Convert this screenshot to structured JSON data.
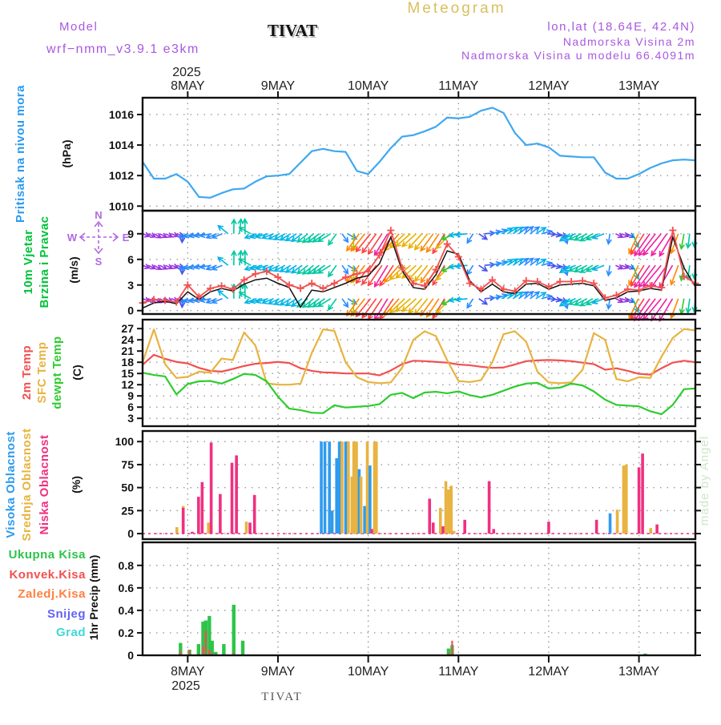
{
  "header": {
    "page_title": "Meteogram",
    "model_label": "Model",
    "model_name": "wrf−nmm_v3.9.1 e3km",
    "station": "TIVAT",
    "lonlat": "lon,lat (18.64E, 42.4N)",
    "elevation": "Nadmorska Visina 2m",
    "model_elevation": "Nadmorska Visina u modelu 66.4091m"
  },
  "x_axis": {
    "year": "2025",
    "days": [
      "8MAY",
      "9MAY",
      "10MAY",
      "11MAY",
      "12MAY",
      "13MAY"
    ],
    "tick_days": [
      0.5,
      1.5,
      2.5,
      3.5,
      4.5,
      5.5
    ],
    "span_days": 6.125
  },
  "footer": {
    "station": "TIVAT",
    "year": "2025"
  },
  "watermark": "made by Angel",
  "chart_data": [
    {
      "type": "line",
      "title": "Pritisak na nivou mora",
      "title_color": "#2b9af0",
      "ylabel": "(hPa)",
      "yticks": [
        1010,
        1012,
        1014,
        1016
      ],
      "ylim": [
        1009.7,
        1017.1
      ],
      "series": [
        {
          "name": "sea-level-pressure",
          "color": "#3fa8f0",
          "values": [
            1012.9,
            1011.8,
            1011.8,
            1012.1,
            1011.6,
            1010.6,
            1010.55,
            1010.85,
            1011.1,
            1011.15,
            1011.6,
            1011.95,
            1012.0,
            1012.1,
            1012.85,
            1013.6,
            1013.75,
            1013.6,
            1013.55,
            1012.3,
            1012.1,
            1012.9,
            1013.8,
            1014.55,
            1014.65,
            1014.9,
            1015.2,
            1015.8,
            1015.75,
            1015.85,
            1016.25,
            1016.45,
            1016.1,
            1014.8,
            1014.0,
            1014.1,
            1013.85,
            1013.3,
            1013.25,
            1013.2,
            1013.2,
            1012.2,
            1011.8,
            1011.8,
            1012.1,
            1012.5,
            1012.8,
            1013.0,
            1013.05,
            1013.0
          ]
        }
      ]
    },
    {
      "type": "wind",
      "labels": [
        "10m Vjetar",
        "Brzina i Pravac"
      ],
      "label_color": "#00c33a",
      "ylabel": "(m/s)",
      "yticks": [
        0,
        3,
        6,
        9
      ],
      "ylim": [
        -0.4,
        11.7
      ],
      "arrow_rows": [
        9.0,
        5.3,
        1.4
      ],
      "compass": {
        "n": "N",
        "e": "E",
        "s": "S",
        "w": "W"
      },
      "speed_color": "#f25050",
      "speed2_color": "#111111",
      "speed": [
        0.9,
        1.3,
        1.2,
        1.0,
        3.0,
        1.6,
        2.6,
        2.9,
        2.5,
        3.6,
        4.3,
        4.6,
        3.9,
        3.0,
        2.6,
        3.2,
        2.6,
        3.2,
        3.9,
        4.3,
        4.6,
        6.5,
        9.4,
        5.0,
        3.2,
        2.9,
        4.8,
        7.8,
        6.3,
        3.2,
        2.5,
        3.6,
        2.5,
        2.3,
        3.5,
        3.4,
        2.8,
        3.4,
        3.4,
        3.5,
        3.2,
        1.5,
        1.8,
        2.5,
        2.4,
        2.9,
        2.7,
        9.4,
        4.0,
        3.2
      ],
      "speed2": [
        0.3,
        0.9,
        1.1,
        0.8,
        2.2,
        1.3,
        2.2,
        2.6,
        2.3,
        3.1,
        3.6,
        3.8,
        3.2,
        2.7,
        0.4,
        2.4,
        2.2,
        2.7,
        3.2,
        3.8,
        4.1,
        5.5,
        8.6,
        4.7,
        2.7,
        2.5,
        4.2,
        7.0,
        6.6,
        3.5,
        2.2,
        3.1,
        2.2,
        2.0,
        3.1,
        3.2,
        2.5,
        3.0,
        3.1,
        3.2,
        2.9,
        1.2,
        1.5,
        2.2,
        2.3,
        2.6,
        2.4,
        8.6,
        5.0,
        2.8
      ],
      "dir_deg": [
        110,
        120,
        115,
        105,
        250,
        255,
        260,
        240,
        0,
        10,
        250,
        255,
        245,
        240,
        235,
        230,
        235,
        240,
        100,
        215,
        220,
        215,
        210,
        225,
        230,
        220,
        215,
        210,
        260,
        265,
        90,
        75,
        60,
        55,
        50,
        60,
        100,
        110,
        250,
        245,
        240,
        250,
        105,
        115,
        210,
        215,
        220,
        210,
        190,
        185
      ],
      "arrow_speed": [
        1.2,
        1.5,
        1.3,
        1.0,
        2.5,
        2.8,
        3.0,
        2.8,
        4.5,
        4.8,
        3.5,
        3.6,
        3.4,
        3.5,
        3.8,
        4.2,
        4.5,
        4.8,
        1.5,
        7.5,
        8.5,
        9.2,
        9.8,
        7.8,
        6.5,
        7.2,
        8.0,
        8.8,
        4.0,
        3.2,
        2.2,
        3.0,
        3.5,
        3.2,
        3.0,
        3.3,
        1.5,
        1.8,
        3.8,
        4.2,
        4.5,
        3.5,
        1.3,
        1.6,
        8.5,
        10.5,
        11.0,
        10.0,
        5.0,
        4.0
      ],
      "speed_scale_colors": [
        "#9a30e0",
        "#4455ee",
        "#2b8cff",
        "#00b4e8",
        "#00c8a0",
        "#30c830",
        "#a8cc00",
        "#e8b000",
        "#ff8800",
        "#ff4040",
        "#f020a0"
      ]
    },
    {
      "type": "line",
      "labels": [
        "2m Temp",
        "SFC Temp",
        "dewpt Temp"
      ],
      "ylabel": "(C)",
      "yticks": [
        3,
        6,
        9,
        12,
        15,
        18,
        21,
        24,
        27
      ],
      "ylim": [
        0.9,
        29.4
      ],
      "series": [
        {
          "name": "2m-temp",
          "color": "#f25050",
          "values": [
            17.3,
            20.0,
            18.9,
            18.1,
            17.7,
            16.5,
            15.7,
            15.5,
            16.2,
            17.0,
            17.6,
            17.8,
            18.1,
            17.8,
            16.4,
            15.7,
            15.3,
            15.2,
            15.0,
            15.0,
            15.0,
            14.5,
            15.8,
            17.5,
            18.4,
            18.3,
            18.1,
            17.9,
            17.4,
            17.2,
            16.8,
            16.5,
            16.6,
            17.4,
            18.3,
            18.5,
            18.6,
            18.5,
            18.3,
            17.9,
            17.5,
            16.0,
            16.4,
            15.7,
            14.9,
            14.7,
            16.4,
            17.9,
            18.4,
            18.0
          ]
        },
        {
          "name": "sfc-temp",
          "color": "#e8b340",
          "values": [
            18.0,
            26.8,
            17.5,
            13.8,
            14.1,
            15.5,
            15.2,
            19.0,
            18.6,
            26.0,
            22.5,
            12.4,
            12.0,
            12.0,
            12.3,
            20.5,
            26.8,
            26.4,
            18.0,
            14.0,
            12.7,
            12.4,
            12.6,
            16.5,
            24.0,
            26.3,
            25.0,
            18.5,
            13.0,
            12.7,
            13.2,
            18.0,
            25.5,
            26.3,
            23.5,
            15.5,
            12.6,
            12.4,
            12.6,
            16.0,
            25.8,
            24.0,
            13.5,
            12.9,
            14.0,
            13.8,
            19.5,
            24.5,
            26.9,
            26.5
          ]
        },
        {
          "name": "dewpt-temp",
          "color": "#2ecc2e",
          "values": [
            15.2,
            14.6,
            14.2,
            9.4,
            12.2,
            12.9,
            13.0,
            12.3,
            13.5,
            14.9,
            14.6,
            12.9,
            8.8,
            5.6,
            5.2,
            4.5,
            4.4,
            6.5,
            5.9,
            6.1,
            6.3,
            6.8,
            9.3,
            9.8,
            8.4,
            9.9,
            10.1,
            9.7,
            10.2,
            9.2,
            8.6,
            9.3,
            10.4,
            11.5,
            12.3,
            12.5,
            11.0,
            11.2,
            12.3,
            11.8,
            10.2,
            8.0,
            6.6,
            6.4,
            6.2,
            4.9,
            4.1,
            6.6,
            10.8,
            11.0
          ]
        }
      ]
    },
    {
      "type": "bar",
      "labels": [
        "Visoka Oblacnost",
        "Srednja Oblacnost",
        "Niska  Oblacnost"
      ],
      "label_colors": [
        "#2e9bf0",
        "#e8b340",
        "#f03080"
      ],
      "layer_colors": {
        "h": "#2e9bf0",
        "m": "#e8b340",
        "l": "#f03080"
      },
      "ylabel": "(%)",
      "yticks": [
        0,
        25,
        50,
        75,
        100
      ],
      "ylim": [
        -6,
        111.5
      ],
      "bars": [
        [
          0.38,
          7,
          "m"
        ],
        [
          0.45,
          30,
          "m"
        ],
        [
          0.45,
          28,
          "l"
        ],
        [
          0.55,
          2,
          "l"
        ],
        [
          0.62,
          40,
          "l"
        ],
        [
          0.66,
          56,
          "l"
        ],
        [
          0.73,
          12,
          "m"
        ],
        [
          0.76,
          99,
          "l"
        ],
        [
          0.86,
          43,
          "l"
        ],
        [
          0.99,
          77,
          "l"
        ],
        [
          1.04,
          85,
          "l"
        ],
        [
          1.15,
          13,
          "m"
        ],
        [
          1.19,
          12,
          "l"
        ],
        [
          1.24,
          42,
          "l"
        ],
        [
          1.98,
          100,
          "h"
        ],
        [
          2.02,
          100,
          "h"
        ],
        [
          2.07,
          100,
          "h"
        ],
        [
          2.1,
          20,
          "m"
        ],
        [
          2.1,
          25,
          "h"
        ],
        [
          2.15,
          82,
          "h"
        ],
        [
          2.18,
          100,
          "h"
        ],
        [
          2.21,
          100,
          "m"
        ],
        [
          2.25,
          100,
          "h"
        ],
        [
          2.28,
          100,
          "m"
        ],
        [
          2.32,
          62,
          "m"
        ],
        [
          2.34,
          100,
          "m"
        ],
        [
          2.37,
          100,
          "m"
        ],
        [
          2.4,
          70,
          "h"
        ],
        [
          2.42,
          62,
          "m"
        ],
        [
          2.46,
          30,
          "h"
        ],
        [
          2.49,
          100,
          "m"
        ],
        [
          2.52,
          74,
          "h"
        ],
        [
          2.54,
          5,
          "l"
        ],
        [
          2.57,
          100,
          "m"
        ],
        [
          2.59,
          100,
          "m"
        ],
        [
          3.18,
          38,
          "l"
        ],
        [
          3.22,
          12,
          "l"
        ],
        [
          3.3,
          28,
          "m"
        ],
        [
          3.33,
          8,
          "l"
        ],
        [
          3.36,
          57,
          "m"
        ],
        [
          3.39,
          48,
          "m"
        ],
        [
          3.42,
          52,
          "m"
        ],
        [
          3.45,
          3,
          "m"
        ],
        [
          3.57,
          15,
          "l"
        ],
        [
          3.84,
          57,
          "l"
        ],
        [
          3.89,
          5,
          "l"
        ],
        [
          4.5,
          13,
          "l"
        ],
        [
          5.03,
          15,
          "l"
        ],
        [
          5.18,
          22,
          "h"
        ],
        [
          5.26,
          26,
          "m"
        ],
        [
          5.33,
          74,
          "m"
        ],
        [
          5.36,
          75,
          "m"
        ],
        [
          5.5,
          72,
          "l"
        ],
        [
          5.54,
          87,
          "l"
        ],
        [
          5.63,
          6,
          "m"
        ],
        [
          5.7,
          10,
          "l"
        ]
      ]
    },
    {
      "type": "bar",
      "labels": [
        "Ukupna Kisa",
        "Konvek.Kisa",
        "Zaledj.Kisa",
        "Snijeg",
        "Grad"
      ],
      "label_colors": [
        "#2ec44a",
        "#f25050",
        "#ff8040",
        "#6262f5",
        "#3fd8d8"
      ],
      "bar_colors": {
        "total": "#2ec44a",
        "convective": "#f25050"
      },
      "ylabel": "1hr Precip (mm)",
      "yticks": [
        0,
        0.2,
        0.4,
        0.6,
        0.8
      ],
      "ylim": [
        0,
        1.005
      ],
      "bars": [
        [
          0.42,
          0.11,
          0.04
        ],
        [
          0.52,
          0.05,
          0.05
        ],
        [
          0.62,
          0.1,
          0.0
        ],
        [
          0.67,
          0.3,
          0.08
        ],
        [
          0.7,
          0.31,
          0.22
        ],
        [
          0.74,
          0.35,
          0.05
        ],
        [
          0.77,
          0.13,
          0.02
        ],
        [
          0.81,
          0.03,
          0.01
        ],
        [
          0.9,
          0.1,
          0.0
        ],
        [
          1.01,
          0.45,
          0.02
        ],
        [
          1.11,
          0.13,
          0.0
        ],
        [
          3.39,
          0.06,
          0.02
        ],
        [
          3.43,
          0.09,
          0.13
        ],
        [
          5.57,
          0.015,
          0.0
        ]
      ]
    }
  ]
}
